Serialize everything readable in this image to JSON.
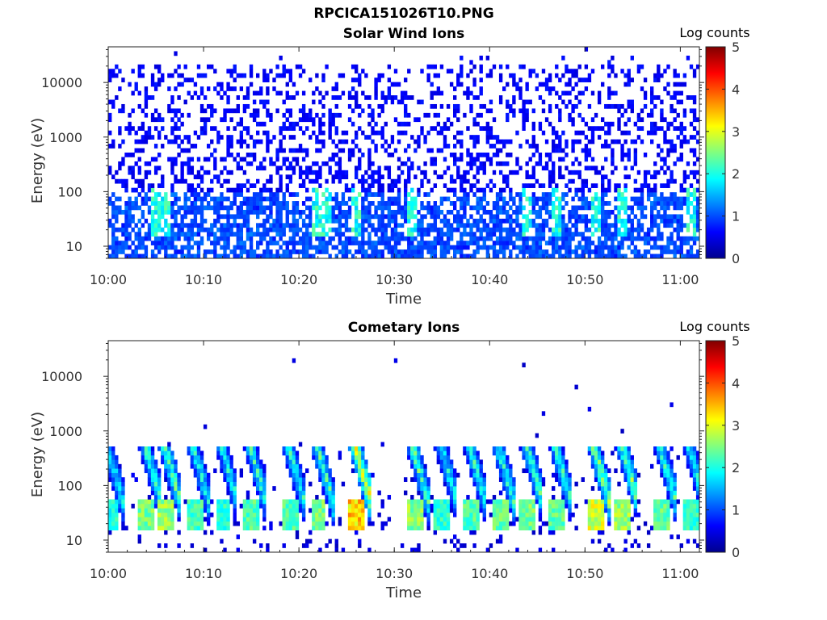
{
  "page": {
    "title": "RPCICA151026T10.PNG"
  },
  "chart_data": [
    {
      "type": "heatmap",
      "title": "Solar Wind Ions",
      "xlabel": "Time",
      "ylabel": "Energy (eV)",
      "x_ticks": [
        "10:00",
        "10:10",
        "10:20",
        "10:30",
        "10:40",
        "10:50",
        "11:00"
      ],
      "xlim": [
        "10:00",
        "11:02"
      ],
      "y_scale": "log",
      "y_ticks": [
        "10",
        "100",
        "1000",
        "10000"
      ],
      "ylim": [
        6,
        45000
      ],
      "colorbar": {
        "label": "Log counts",
        "range": [
          0,
          5
        ],
        "ticks": [
          "0",
          "1",
          "2",
          "3",
          "4",
          "5"
        ],
        "colormap": "jet"
      },
      "description_values": {
        "dominant_low_energy_log_counts": 1.0,
        "sparse_high_energy_log_counts": 0.1,
        "peak_log_counts": 2.2,
        "peak_energy_ev": 30,
        "peak_times": [
          "10:05",
          "10:06",
          "10:22",
          "10:23",
          "10:26",
          "10:32",
          "10:44",
          "10:47",
          "10:51",
          "10:54",
          "11:01"
        ]
      }
    },
    {
      "type": "heatmap",
      "title": "Cometary Ions",
      "xlabel": "Time",
      "ylabel": "Energy (eV)",
      "x_ticks": [
        "10:00",
        "10:10",
        "10:20",
        "10:30",
        "10:40",
        "10:50",
        "11:00"
      ],
      "xlim": [
        "10:00",
        "11:02"
      ],
      "y_scale": "log",
      "y_ticks": [
        "10",
        "100",
        "1000",
        "10000"
      ],
      "ylim": [
        6,
        45000
      ],
      "colorbar": {
        "label": "Log counts",
        "range": [
          0,
          5
        ],
        "ticks": [
          "0",
          "1",
          "2",
          "3",
          "4",
          "5"
        ],
        "colormap": "jet"
      },
      "bursts": [
        {
          "time": "10:00",
          "peak_log_counts": 2.3
        },
        {
          "time": "10:04",
          "peak_log_counts": 2.8
        },
        {
          "time": "10:06",
          "peak_log_counts": 3.0
        },
        {
          "time": "10:09",
          "peak_log_counts": 2.5
        },
        {
          "time": "10:12",
          "peak_log_counts": 2.4
        },
        {
          "time": "10:15",
          "peak_log_counts": 2.6
        },
        {
          "time": "10:19",
          "peak_log_counts": 2.6
        },
        {
          "time": "10:22",
          "peak_log_counts": 2.8
        },
        {
          "time": "10:26",
          "peak_log_counts": 3.8
        },
        {
          "time": "10:32",
          "peak_log_counts": 2.9
        },
        {
          "time": "10:35",
          "peak_log_counts": 2.4
        },
        {
          "time": "10:38",
          "peak_log_counts": 2.6
        },
        {
          "time": "10:41",
          "peak_log_counts": 2.7
        },
        {
          "time": "10:44",
          "peak_log_counts": 2.8
        },
        {
          "time": "10:47",
          "peak_log_counts": 2.7
        },
        {
          "time": "10:51",
          "peak_log_counts": 3.3
        },
        {
          "time": "10:54",
          "peak_log_counts": 3.0
        },
        {
          "time": "10:58",
          "peak_log_counts": 2.7
        },
        {
          "time": "11:01",
          "peak_log_counts": 2.4
        }
      ]
    }
  ]
}
